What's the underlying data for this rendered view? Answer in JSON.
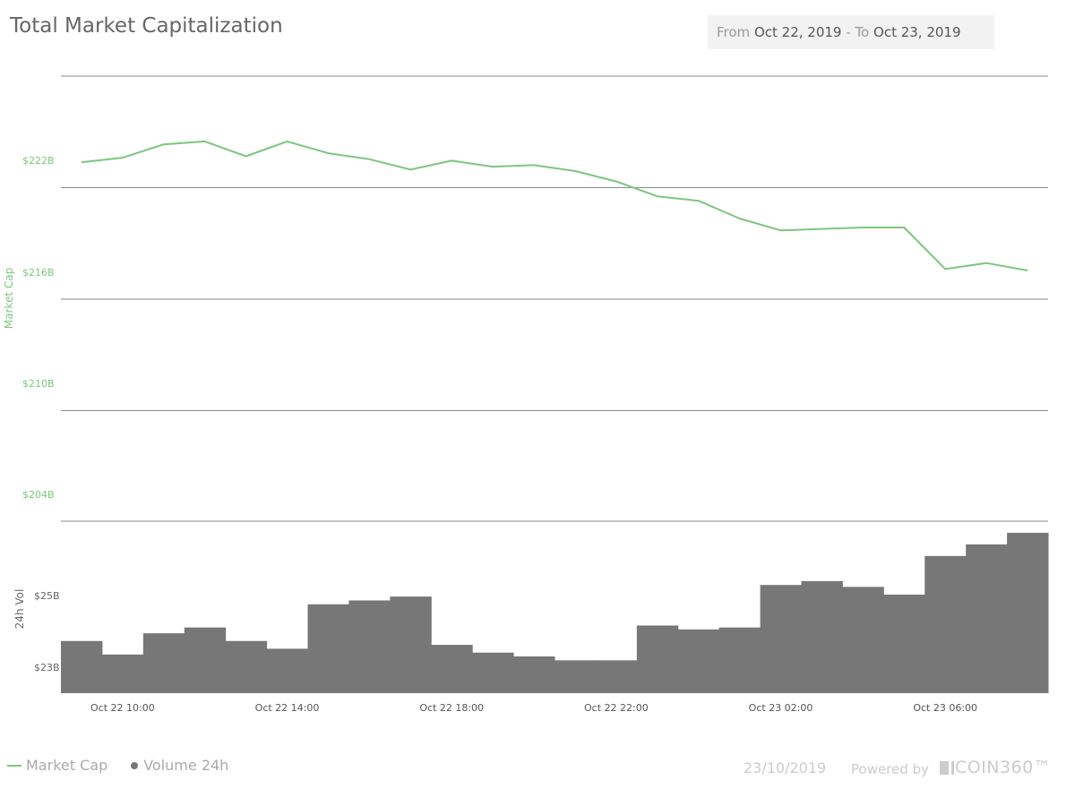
{
  "title": "Total Market Capitalization",
  "date_range": {
    "from_label": "From",
    "from_value": "Oct 22, 2019",
    "separator": "-",
    "to_label": "To",
    "to_value": "Oct 23, 2019"
  },
  "legend": {
    "market_cap": "Market Cap",
    "volume": "Volume 24h"
  },
  "footer": {
    "date": "23/10/2019",
    "powered_by": "Powered by",
    "brand": "COIN360™"
  },
  "colors": {
    "market_cap_line": "#7cc67e",
    "volume_bars": "#777777"
  },
  "chart_data": {
    "type": "line",
    "x": [
      "Oct 22 09:00",
      "Oct 22 10:00",
      "Oct 22 11:00",
      "Oct 22 12:00",
      "Oct 22 13:00",
      "Oct 22 14:00",
      "Oct 22 15:00",
      "Oct 22 16:00",
      "Oct 22 17:00",
      "Oct 22 18:00",
      "Oct 22 19:00",
      "Oct 22 20:00",
      "Oct 22 21:00",
      "Oct 22 22:00",
      "Oct 22 23:00",
      "Oct 23 00:00",
      "Oct 23 01:00",
      "Oct 23 02:00",
      "Oct 23 03:00",
      "Oct 23 04:00",
      "Oct 23 05:00",
      "Oct 23 06:00",
      "Oct 23 07:00",
      "Oct 23 08:00"
    ],
    "x_tick_labels": [
      "Oct 22 10:00",
      "Oct 22 14:00",
      "Oct 22 18:00",
      "Oct 22 22:00",
      "Oct 23 02:00",
      "Oct 23 06:00"
    ],
    "series": [
      {
        "name": "Market Cap",
        "axis": "left",
        "type": "line",
        "values": [
          222.2,
          222.5,
          223.4,
          223.6,
          222.6,
          223.6,
          222.8,
          222.4,
          221.7,
          222.3,
          221.9,
          222.0,
          221.6,
          220.9,
          219.9,
          219.6,
          218.4,
          217.6,
          217.7,
          217.8,
          217.8,
          215.0,
          215.4,
          214.9
        ]
      },
      {
        "name": "Volume 24h",
        "axis": "bottom",
        "type": "bar",
        "values": [
          23.85,
          23.5,
          24.05,
          24.2,
          23.85,
          23.65,
          24.8,
          24.9,
          25.0,
          23.75,
          23.55,
          23.45,
          23.35,
          23.35,
          24.25,
          24.15,
          24.2,
          25.3,
          25.4,
          25.25,
          25.05,
          26.05,
          26.35,
          26.65
        ]
      }
    ],
    "y_axes": {
      "market_cap": {
        "title": "Market Cap",
        "ylim": [
          198,
          228
        ],
        "tick_labels": [
          "$222B",
          "$216B",
          "$210B",
          "$204B"
        ]
      },
      "volume": {
        "title": "24h Vol",
        "ylim": [
          22.5,
          26.95
        ],
        "tick_labels": [
          "$25B",
          "$23B"
        ]
      }
    },
    "grid": true,
    "legend_position": "bottom-left"
  }
}
